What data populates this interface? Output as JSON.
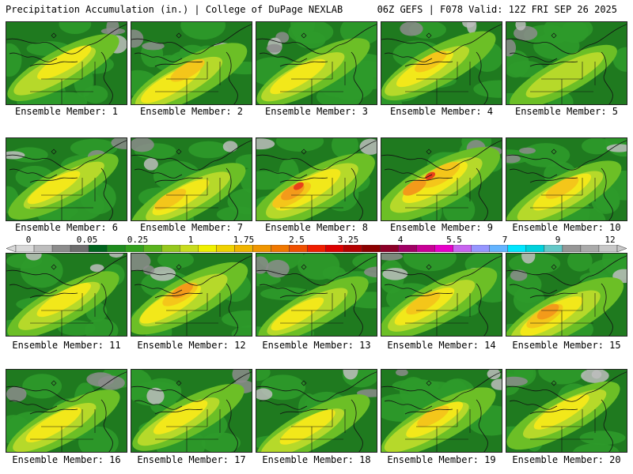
{
  "header": {
    "left": "Precipitation Accumulation (in.) | College of DuPage NEXLAB",
    "right": "06Z GEFS | F078 Valid: 12Z FRI SEP 26 2025"
  },
  "members": [
    {
      "label": "Ensemble Member: 1",
      "intensity": 0.45
    },
    {
      "label": "Ensemble Member: 2",
      "intensity": 0.65
    },
    {
      "label": "Ensemble Member: 3",
      "intensity": 0.5
    },
    {
      "label": "Ensemble Member: 4",
      "intensity": 0.55
    },
    {
      "label": "Ensemble Member: 5",
      "intensity": 0.3
    },
    {
      "label": "Ensemble Member: 6",
      "intensity": 0.4
    },
    {
      "label": "Ensemble Member: 7",
      "intensity": 0.55
    },
    {
      "label": "Ensemble Member: 8",
      "intensity": 0.85
    },
    {
      "label": "Ensemble Member: 9",
      "intensity": 0.85
    },
    {
      "label": "Ensemble Member: 10",
      "intensity": 0.6
    },
    {
      "label": "Ensemble Member: 11",
      "intensity": 0.45
    },
    {
      "label": "Ensemble Member: 12",
      "intensity": 0.7
    },
    {
      "label": "Ensemble Member: 13",
      "intensity": 0.4
    },
    {
      "label": "Ensemble Member: 14",
      "intensity": 0.65
    },
    {
      "label": "Ensemble Member: 15",
      "intensity": 0.75
    },
    {
      "label": "Ensemble Member: 16",
      "intensity": 0.5
    },
    {
      "label": "Ensemble Member: 17",
      "intensity": 0.45
    },
    {
      "label": "Ensemble Member: 18",
      "intensity": 0.5
    },
    {
      "label": "Ensemble Member: 19",
      "intensity": 0.55
    },
    {
      "label": "Ensemble Member: 20",
      "intensity": 0.5
    }
  ],
  "scale": {
    "ticks": [
      "0",
      "0.05",
      "0.25",
      "1",
      "1.75",
      "2.5",
      "3.25",
      "4",
      "5.5",
      "7",
      "9",
      "12"
    ],
    "colors": [
      "#d9d9d9",
      "#bdbdbd",
      "#8c8c8c",
      "#6e6e6e",
      "#00641e",
      "#1e8c1e",
      "#32a01e",
      "#5ab41e",
      "#96c81e",
      "#c8dc1e",
      "#f0f000",
      "#f0d200",
      "#f0b400",
      "#f09600",
      "#f07800",
      "#f05000",
      "#f01e00",
      "#dc0000",
      "#b40000",
      "#8c0000",
      "#8c0028",
      "#a00064",
      "#c80096",
      "#e600c8",
      "#c864f0",
      "#9696ff",
      "#64b4ff",
      "#00e6ff",
      "#00d2dc",
      "#64c8c8",
      "#969696",
      "#aaaaaa",
      "#c8c8c8"
    ],
    "palette": {
      "trace": "#e6e6e6",
      "light": "#bdbdbd",
      "mid_gray": "#8c8c8c",
      "dark_green": "#1f7a1f",
      "green": "#2e9a2a",
      "light_green": "#6cbf26",
      "yellow_green": "#b6d92a",
      "yellow": "#f2e81a",
      "gold": "#f4c61a",
      "orange": "#f39a1a",
      "red": "#e8401a"
    }
  }
}
